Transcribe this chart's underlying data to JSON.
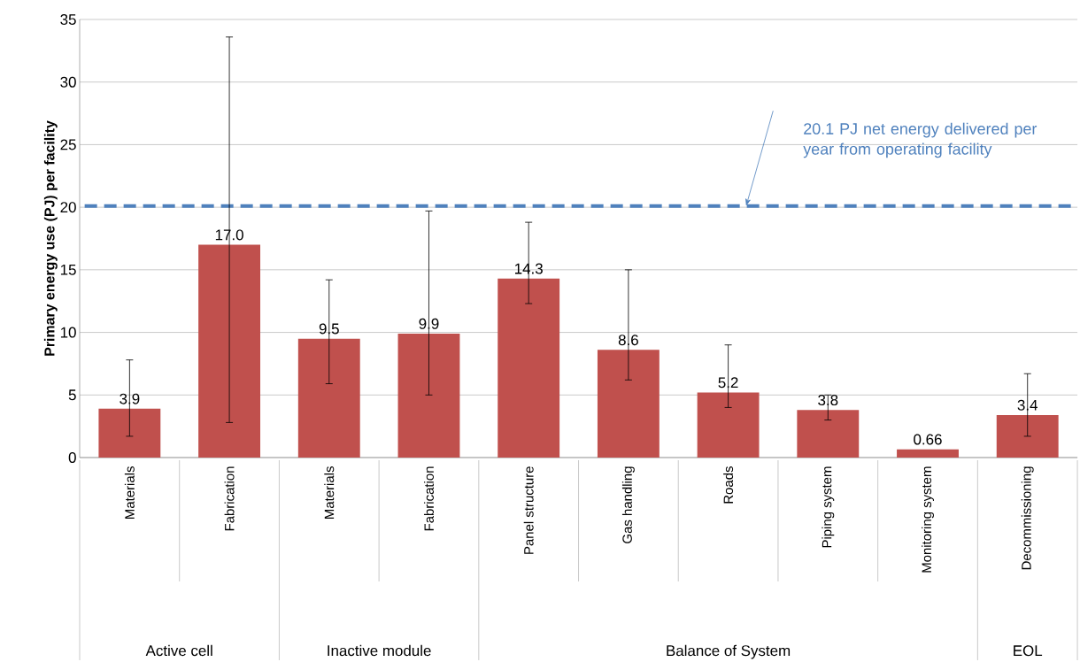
{
  "chart_data": {
    "type": "bar",
    "ylabel": "Primary  energy use (PJ) per facility",
    "categories": [
      "Materials",
      "Fabrication",
      "Materials",
      "Fabrication",
      "Panel structure",
      "Gas handling",
      "Roads",
      "Piping system",
      "Monitoring system",
      "Decommissioning"
    ],
    "values": [
      3.9,
      17.0,
      9.5,
      9.9,
      14.3,
      8.6,
      5.2,
      3.8,
      0.66,
      3.4
    ],
    "value_labels": [
      "3.9",
      "17.0",
      "9.5",
      "9.9",
      "14.3",
      "8.6",
      "5.2",
      "3.8",
      "0.66",
      "3.4"
    ],
    "errors": [
      [
        1.7,
        7.8
      ],
      [
        2.8,
        33.6
      ],
      [
        5.9,
        14.2
      ],
      [
        5.0,
        19.7
      ],
      [
        12.3,
        18.8
      ],
      [
        6.2,
        15.0
      ],
      [
        4.0,
        9.0
      ],
      [
        3.0,
        5.0
      ],
      null,
      [
        1.7,
        6.7
      ]
    ],
    "color": "#c0504d",
    "ylim": [
      0,
      35
    ],
    "yticks": [
      0,
      5,
      10,
      15,
      20,
      25,
      30,
      35
    ],
    "grid": "y",
    "ref_lines": [
      {
        "axis": "y",
        "value": 20.1,
        "label": "20.1 PJ net energy delivered per year from operating facility",
        "color": "#4f81bd",
        "line_style": "dashed"
      }
    ],
    "annotations": [
      "Active cell",
      "Inactive module",
      "Balance of System",
      "EOL"
    ]
  }
}
